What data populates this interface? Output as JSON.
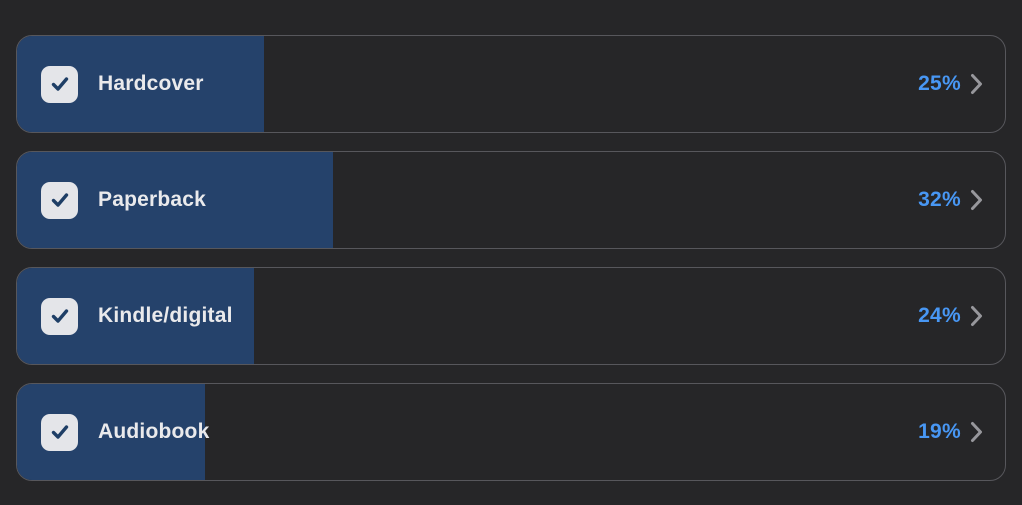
{
  "poll": {
    "options": [
      {
        "label": "Hardcover",
        "percent_label": "25%",
        "value": 25,
        "checked": true
      },
      {
        "label": "Paperback",
        "percent_label": "32%",
        "value": 32,
        "checked": true
      },
      {
        "label": "Kindle/digital",
        "percent_label": "24%",
        "value": 24,
        "checked": true
      },
      {
        "label": "Audiobook",
        "percent_label": "19%",
        "value": 19,
        "checked": true
      }
    ]
  },
  "colors": {
    "background": "#262628",
    "row_border": "#57575c",
    "fill_blue": "#25426b",
    "checkbox_background": "#e4e5e9",
    "checkmark": "#1e3e66",
    "label_text": "#eaeaec",
    "percent_blue": "#4897f4",
    "chevron_gray": "#97979c"
  },
  "icons": {
    "checkmark": "check-icon",
    "chevron": "chevron-right-icon"
  }
}
